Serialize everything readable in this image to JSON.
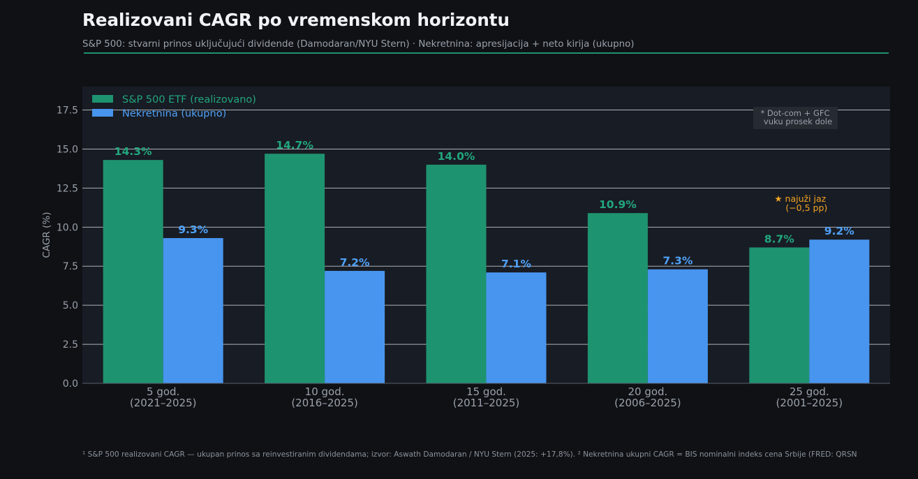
{
  "header": {
    "title": "Realizovani CAGR po vremenskom horizontu",
    "subtitle": "S&P 500: stvarni prinos uključujući dividende (Damodaran/NYU Stern)  ·  Nekretnina: apresijacija + neto kirija (ukupno)"
  },
  "footnote": "¹ S&P 500 realizovani CAGR — ukupan prinos sa reinvestiranim dividendama; izvor: Aswath Damodaran / NYU Stern (2025: +17,8%). ² Nekretnina ukupni CAGR = BIS nominalni indeks cena Srbije (FRED: QRSN",
  "colors": {
    "background": "#0f1115",
    "plot_background": "#181c24",
    "grid": "#c8cbd0",
    "sp500": "#1e9370",
    "sp500_label": "#22a67d",
    "real_estate": "#4895ef",
    "real_estate_label": "#4fa0f5",
    "annotation_star": "#f5a623",
    "axis_text": "#9aa1ab"
  },
  "chart_data": {
    "type": "bar",
    "title": "Realizovani CAGR po vremenskom horizontu",
    "ylabel": "CAGR (%)",
    "xlabel": "",
    "ylim": [
      0,
      19
    ],
    "yticks": [
      "0.0",
      "2.5",
      "5.0",
      "7.5",
      "10.0",
      "12.5",
      "15.0",
      "17.5"
    ],
    "grid": true,
    "legend_position": "top-left",
    "categories": [
      [
        "5 god.",
        "(2021–2025)"
      ],
      [
        "10 god.",
        "(2016–2025)"
      ],
      [
        "15 god.",
        "(2011–2025)"
      ],
      [
        "20 god.",
        "(2006–2025)"
      ],
      [
        "25 god.",
        "(2001–2025)"
      ]
    ],
    "series": [
      {
        "name": "S&P 500 ETF (realizovano)",
        "values": [
          14.3,
          14.7,
          14.0,
          10.9,
          8.7
        ],
        "labels": [
          "14.3%",
          "14.7%",
          "14.0%",
          "10.9%",
          "8.7%"
        ]
      },
      {
        "name": "Nekretnina (ukupno)",
        "values": [
          9.3,
          7.2,
          7.1,
          7.3,
          9.2
        ],
        "labels": [
          "9.3%",
          "7.2%",
          "7.1%",
          "7.3%",
          "9.2%"
        ]
      }
    ],
    "annotations": [
      {
        "lines": [
          "* Dot-com + GFC",
          "vuku prosek dole"
        ],
        "position": "top-right"
      },
      {
        "lines": [
          "★ najuži jaz",
          "(−0,5 pp)"
        ],
        "category_index": 4
      }
    ]
  }
}
